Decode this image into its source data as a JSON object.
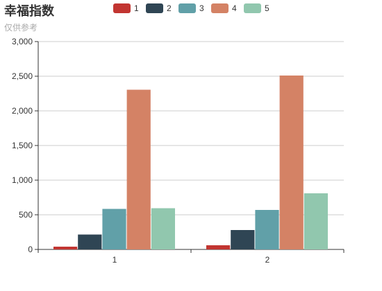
{
  "chart_data": {
    "type": "bar",
    "title": "幸福指数",
    "subtitle": "仅供参考",
    "categories": [
      "1",
      "2"
    ],
    "series": [
      {
        "name": "1",
        "color": "#c23531",
        "values": [
          40,
          60
        ]
      },
      {
        "name": "2",
        "color": "#2f4554",
        "values": [
          215,
          280
        ]
      },
      {
        "name": "3",
        "color": "#61a0a8",
        "values": [
          585,
          570
        ]
      },
      {
        "name": "4",
        "color": "#d48265",
        "values": [
          2305,
          2510
        ]
      },
      {
        "name": "5",
        "color": "#91c7ae",
        "values": [
          595,
          810
        ]
      }
    ],
    "xlabel": "",
    "ylabel": "",
    "ylim": [
      0,
      3000
    ],
    "yticks": [
      0,
      500,
      1000,
      1500,
      2000,
      2500,
      3000
    ],
    "ytick_labels": [
      "0",
      "500",
      "1,000",
      "1,500",
      "2,000",
      "2,500",
      "3,000"
    ],
    "grid": true,
    "legend_position": "top-center"
  }
}
